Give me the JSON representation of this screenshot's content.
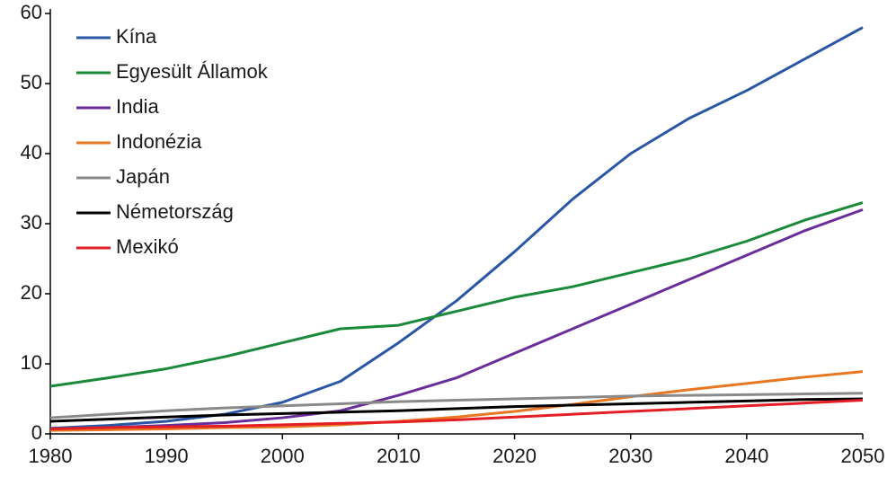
{
  "chart_data": {
    "type": "line",
    "x": [
      1980,
      1985,
      1990,
      1995,
      2000,
      2005,
      2010,
      2015,
      2020,
      2025,
      2030,
      2035,
      2040,
      2045,
      2050
    ],
    "series": [
      {
        "name": "Kína",
        "color": "#2a56a6",
        "values": [
          0.8,
          1.2,
          1.8,
          2.8,
          4.5,
          7.5,
          13,
          19,
          26,
          33.5,
          40,
          45,
          49,
          53.5,
          58
        ]
      },
      {
        "name": "Egyesült Államok",
        "color": "#1a8a3a",
        "values": [
          6.8,
          8,
          9.3,
          11,
          13,
          15,
          15.5,
          17.5,
          19.5,
          21,
          23,
          25,
          27.5,
          30.5,
          33
        ]
      },
      {
        "name": "India",
        "color": "#6a2e9a",
        "values": [
          0.6,
          0.9,
          1.2,
          1.6,
          2.3,
          3.3,
          5.5,
          8,
          11.5,
          15,
          18.5,
          22,
          25.5,
          29,
          32
        ]
      },
      {
        "name": "Indonézia",
        "color": "#e87722",
        "values": [
          0.5,
          0.6,
          0.7,
          0.9,
          1.0,
          1.3,
          1.8,
          2.4,
          3.2,
          4.2,
          5.3,
          6.3,
          7.2,
          8.1,
          8.9
        ]
      },
      {
        "name": "Japán",
        "color": "#8a8a8a",
        "values": [
          2.3,
          2.8,
          3.3,
          3.7,
          4.0,
          4.3,
          4.6,
          4.8,
          5.0,
          5.2,
          5.4,
          5.5,
          5.6,
          5.7,
          5.8
        ]
      },
      {
        "name": "Németország",
        "color": "#000000",
        "values": [
          1.8,
          2.1,
          2.4,
          2.7,
          2.9,
          3.1,
          3.3,
          3.6,
          3.9,
          4.1,
          4.3,
          4.5,
          4.7,
          4.9,
          5.0
        ]
      },
      {
        "name": "Mexikó",
        "color": "#e31e24",
        "values": [
          0.7,
          0.9,
          1.0,
          1.1,
          1.3,
          1.5,
          1.7,
          2.0,
          2.4,
          2.8,
          3.2,
          3.6,
          4.0,
          4.4,
          4.8
        ]
      }
    ],
    "xlim": [
      1980,
      2050
    ],
    "xticks": [
      1980,
      1990,
      2000,
      2010,
      2020,
      2030,
      2040,
      2050
    ],
    "ylim": [
      0,
      60
    ],
    "yticks": [
      0,
      10,
      20,
      30,
      40,
      50,
      60
    ],
    "legend": "upper left"
  }
}
